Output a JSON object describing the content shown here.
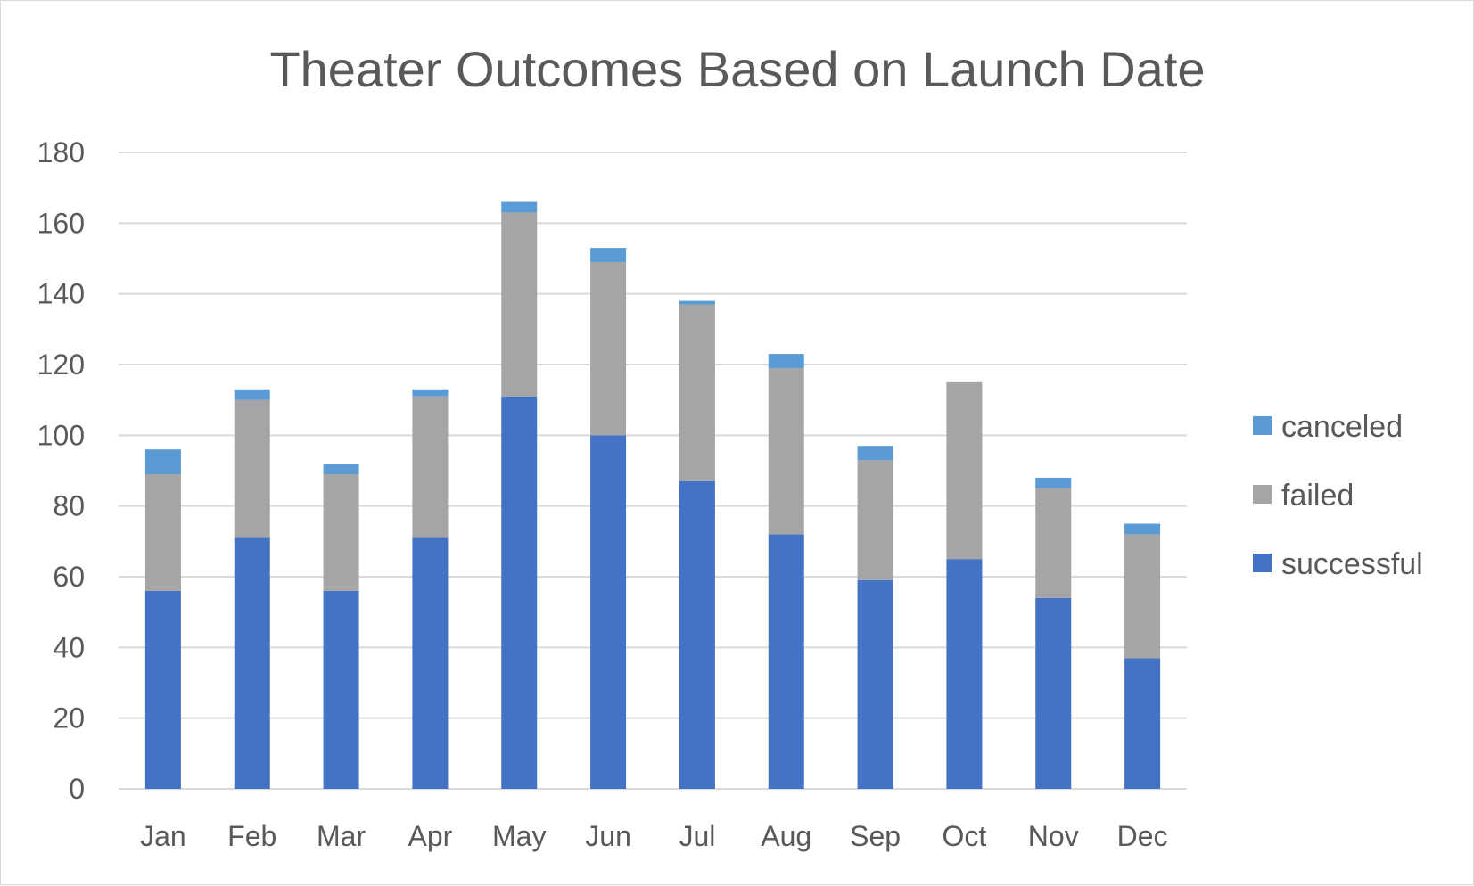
{
  "chart_data": {
    "type": "bar",
    "stacked": true,
    "title": "Theater Outcomes Based on Launch Date",
    "xlabel": "",
    "ylabel": "",
    "categories": [
      "Jan",
      "Feb",
      "Mar",
      "Apr",
      "May",
      "Jun",
      "Jul",
      "Aug",
      "Sep",
      "Oct",
      "Nov",
      "Dec"
    ],
    "ylim": [
      0,
      180
    ],
    "yticks": [
      "0",
      "20",
      "40",
      "60",
      "80",
      "100",
      "120",
      "140",
      "160",
      "180"
    ],
    "grid": true,
    "legend_position": "right",
    "series": [
      {
        "name": "successful",
        "color": "#4472c4",
        "values": [
          56,
          71,
          56,
          71,
          111,
          100,
          87,
          72,
          59,
          65,
          54,
          37
        ]
      },
      {
        "name": "failed",
        "color": "#a5a5a5",
        "values": [
          33,
          39,
          33,
          40,
          52,
          49,
          50,
          47,
          34,
          50,
          31,
          35
        ]
      },
      {
        "name": "canceled",
        "color": "#5b9bd5",
        "values": [
          7,
          3,
          3,
          2,
          3,
          4,
          1,
          4,
          4,
          0,
          3,
          3
        ]
      }
    ],
    "legend_order": [
      "canceled",
      "failed",
      "successful"
    ]
  }
}
